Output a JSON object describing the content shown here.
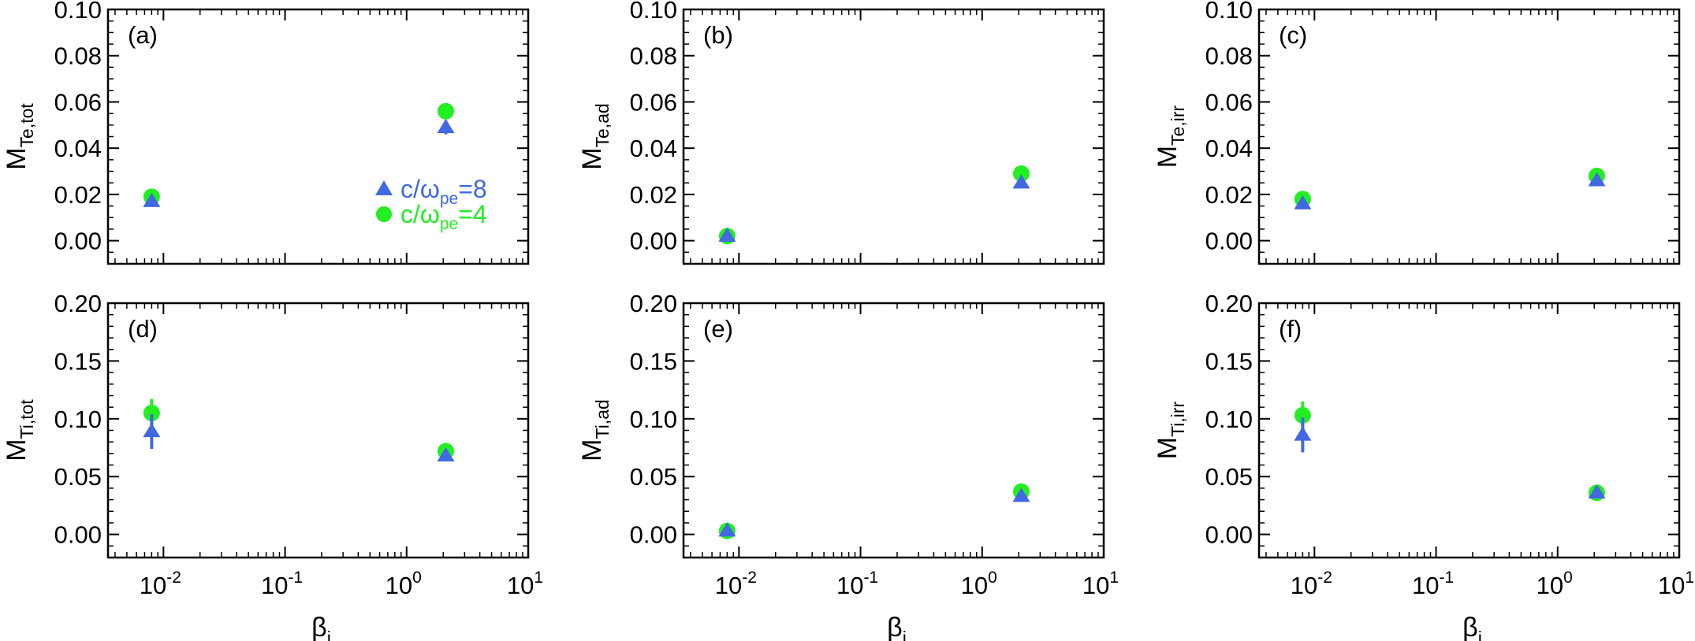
{
  "colors": {
    "series_8": "#4169e1",
    "series_4": "#22ee22",
    "axis": "#000000"
  },
  "legend": [
    {
      "series_key": "c8",
      "prefix": "c/ω",
      "sub": "pe",
      "suffix": "=8",
      "marker": "triangle"
    },
    {
      "series_key": "c4",
      "prefix": "c/ω",
      "sub": "pe",
      "suffix": "=4",
      "marker": "circle"
    }
  ],
  "x_axis": {
    "label": "β",
    "label_sub": "i",
    "scale": "log",
    "ticks": [
      {
        "base": "10",
        "exp": "-2"
      },
      {
        "base": "10",
        "exp": "-1"
      },
      {
        "base": "10",
        "exp": "0"
      },
      {
        "base": "10",
        "exp": "1"
      }
    ]
  },
  "chart_data": [
    {
      "type": "scatter",
      "tag": "(a)",
      "ylabel": "M",
      "ylabel_sub": "Te,tot",
      "xscale": "log",
      "xlim": [
        0.0035,
        10
      ],
      "ylim": [
        -0.01,
        0.1
      ],
      "yticks": [
        "0.10",
        "0.08",
        "0.06",
        "0.04",
        "0.02",
        "0.00"
      ],
      "show_legend": true,
      "legend_placement": "right",
      "series": [
        {
          "key": "c8",
          "marker": "triangle",
          "color": "#4169e1",
          "points": [
            {
              "x": 0.008,
              "y": 0.017,
              "err": 0.002
            },
            {
              "x": 2.1,
              "y": 0.049,
              "err": 0.003
            }
          ]
        },
        {
          "key": "c4",
          "marker": "circle",
          "color": "#22ee22",
          "points": [
            {
              "x": 0.008,
              "y": 0.019,
              "err": 0.001
            },
            {
              "x": 2.1,
              "y": 0.056,
              "err": 0.002
            }
          ]
        }
      ]
    },
    {
      "type": "scatter",
      "tag": "(b)",
      "ylabel": "M",
      "ylabel_sub": "Te,ad",
      "xscale": "log",
      "xlim": [
        0.0035,
        10
      ],
      "ylim": [
        -0.01,
        0.1
      ],
      "yticks": [
        "0.10",
        "0.08",
        "0.06",
        "0.04",
        "0.02",
        "0.00"
      ],
      "show_legend": false,
      "series": [
        {
          "key": "c8",
          "marker": "triangle",
          "color": "#4169e1",
          "points": [
            {
              "x": 0.008,
              "y": 0.002,
              "err": 0.001
            },
            {
              "x": 2.1,
              "y": 0.025,
              "err": 0.002
            }
          ]
        },
        {
          "key": "c4",
          "marker": "circle",
          "color": "#22ee22",
          "points": [
            {
              "x": 0.008,
              "y": 0.002,
              "err": 0.001
            },
            {
              "x": 2.1,
              "y": 0.029,
              "err": 0.001
            }
          ]
        }
      ]
    },
    {
      "type": "scatter",
      "tag": "(c)",
      "ylabel": "M",
      "ylabel_sub": "Te,irr",
      "xscale": "log",
      "xlim": [
        0.0035,
        10
      ],
      "ylim": [
        -0.01,
        0.1
      ],
      "yticks": [
        "0.10",
        "0.08",
        "0.06",
        "0.04",
        "0.02",
        "0.00"
      ],
      "show_legend": false,
      "series": [
        {
          "key": "c8",
          "marker": "triangle",
          "color": "#4169e1",
          "points": [
            {
              "x": 0.008,
              "y": 0.016,
              "err": 0.002
            },
            {
              "x": 2.1,
              "y": 0.026,
              "err": 0.002
            }
          ]
        },
        {
          "key": "c4",
          "marker": "circle",
          "color": "#22ee22",
          "points": [
            {
              "x": 0.008,
              "y": 0.018,
              "err": 0.001
            },
            {
              "x": 2.1,
              "y": 0.028,
              "err": 0.001
            }
          ]
        }
      ]
    },
    {
      "type": "scatter",
      "tag": "(d)",
      "ylabel": "M",
      "ylabel_sub": "Ti,tot",
      "xscale": "log",
      "xlim": [
        0.0035,
        10
      ],
      "ylim": [
        -0.02,
        0.2
      ],
      "yticks": [
        "0.20",
        "0.15",
        "0.10",
        "0.05",
        "0.00"
      ],
      "show_legend": false,
      "series": [
        {
          "key": "c8",
          "marker": "triangle",
          "color": "#4169e1",
          "points": [
            {
              "x": 0.008,
              "y": 0.089,
              "err": 0.015
            },
            {
              "x": 2.1,
              "y": 0.068,
              "err": 0.003
            }
          ]
        },
        {
          "key": "c4",
          "marker": "circle",
          "color": "#22ee22",
          "points": [
            {
              "x": 0.008,
              "y": 0.105,
              "err": 0.012
            },
            {
              "x": 2.1,
              "y": 0.072,
              "err": 0.003
            }
          ]
        }
      ]
    },
    {
      "type": "scatter",
      "tag": "(e)",
      "ylabel": "M",
      "ylabel_sub": "Ti,ad",
      "xscale": "log",
      "xlim": [
        0.0035,
        10
      ],
      "ylim": [
        -0.02,
        0.2
      ],
      "yticks": [
        "0.20",
        "0.15",
        "0.10",
        "0.05",
        "0.00"
      ],
      "show_legend": false,
      "series": [
        {
          "key": "c8",
          "marker": "triangle",
          "color": "#4169e1",
          "points": [
            {
              "x": 0.008,
              "y": 0.003,
              "err": 0.002
            },
            {
              "x": 2.1,
              "y": 0.033,
              "err": 0.003
            }
          ]
        },
        {
          "key": "c4",
          "marker": "circle",
          "color": "#22ee22",
          "points": [
            {
              "x": 0.008,
              "y": 0.003,
              "err": 0.001
            },
            {
              "x": 2.1,
              "y": 0.037,
              "err": 0.002
            }
          ]
        }
      ]
    },
    {
      "type": "scatter",
      "tag": "(f)",
      "ylabel": "M",
      "ylabel_sub": "Ti,irr",
      "xscale": "log",
      "xlim": [
        0.0035,
        10
      ],
      "ylim": [
        -0.02,
        0.2
      ],
      "yticks": [
        "0.20",
        "0.15",
        "0.10",
        "0.05",
        "0.00"
      ],
      "show_legend": false,
      "series": [
        {
          "key": "c8",
          "marker": "triangle",
          "color": "#4169e1",
          "points": [
            {
              "x": 0.008,
              "y": 0.086,
              "err": 0.015
            },
            {
              "x": 2.1,
              "y": 0.036,
              "err": 0.004
            }
          ]
        },
        {
          "key": "c4",
          "marker": "circle",
          "color": "#22ee22",
          "points": [
            {
              "x": 0.008,
              "y": 0.103,
              "err": 0.012
            },
            {
              "x": 2.1,
              "y": 0.036,
              "err": 0.003
            }
          ]
        }
      ]
    }
  ]
}
